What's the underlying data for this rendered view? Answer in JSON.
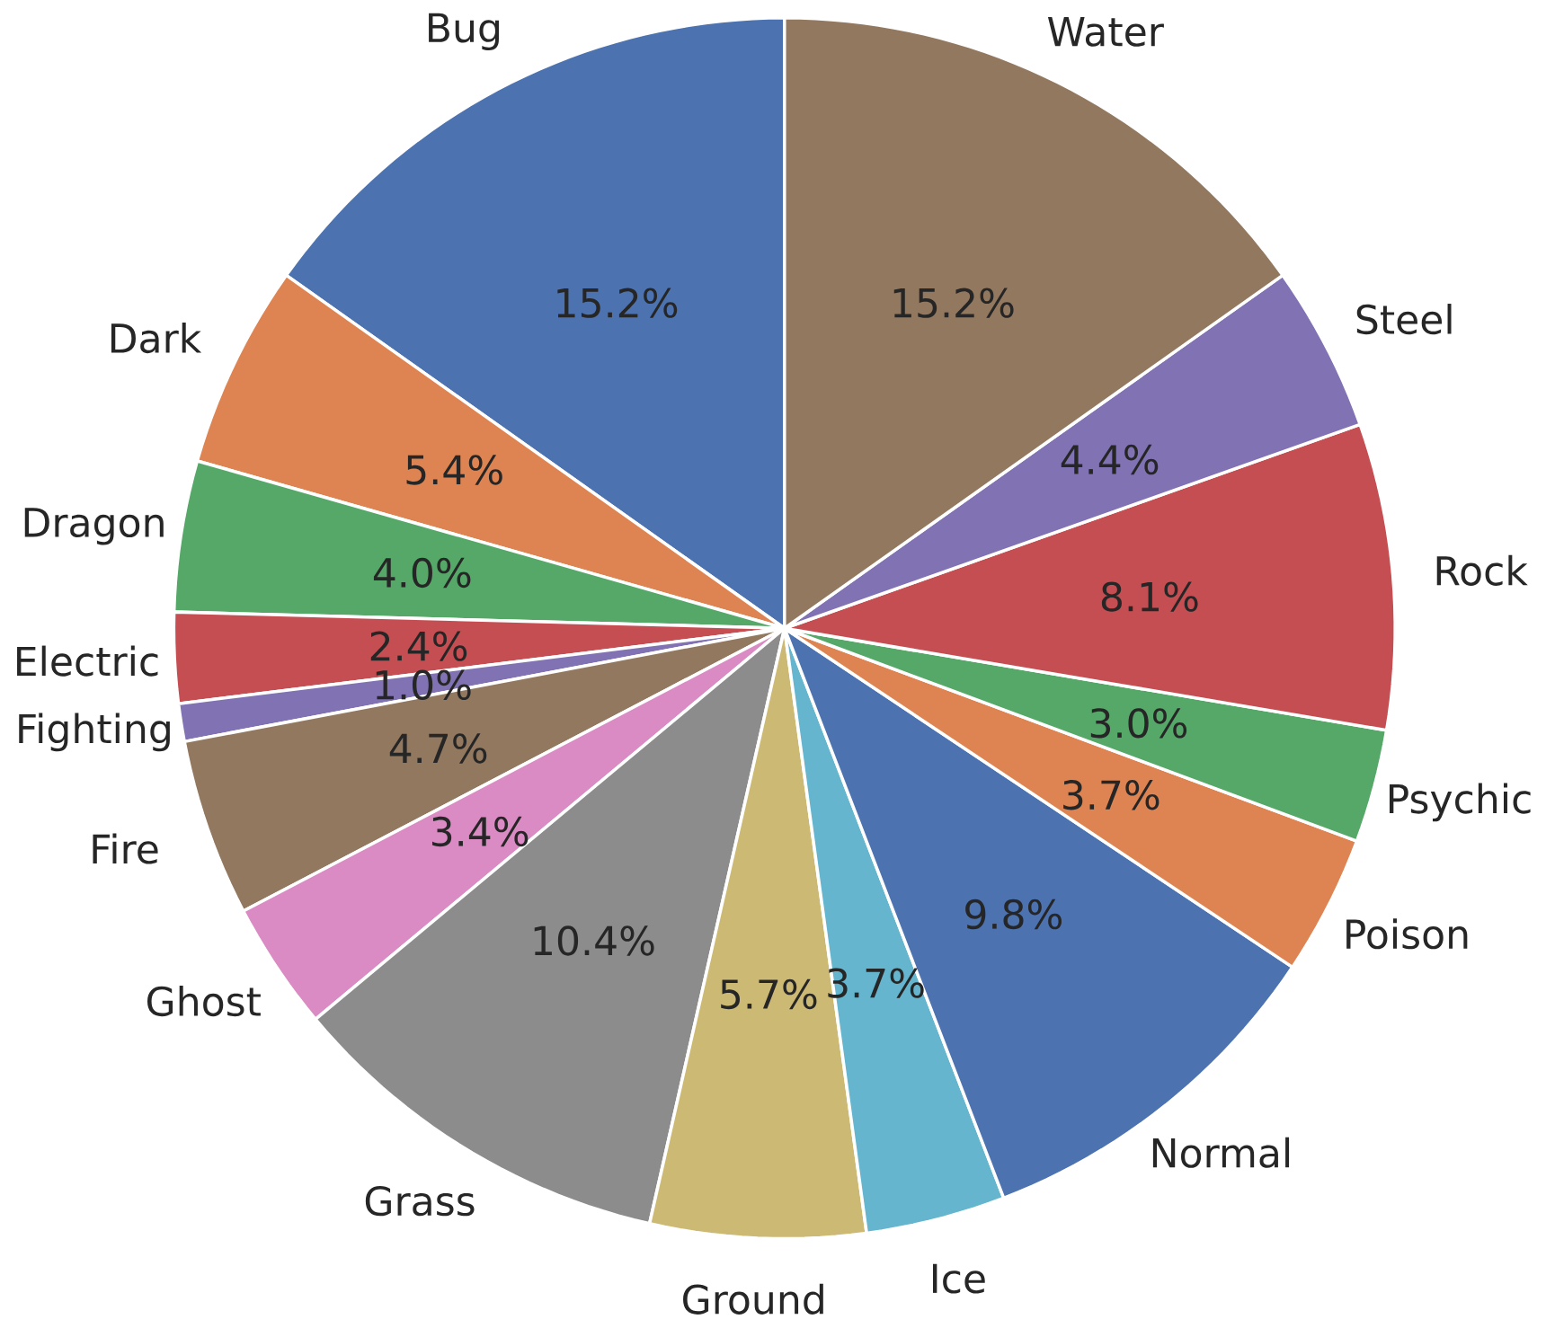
{
  "chart_data": {
    "type": "pie",
    "categories": [
      "Bug",
      "Dark",
      "Dragon",
      "Electric",
      "Fighting",
      "Fire",
      "Ghost",
      "Grass",
      "Ground",
      "Ice",
      "Normal",
      "Poison",
      "Psychic",
      "Rock",
      "Steel",
      "Water"
    ],
    "values": [
      15.2,
      5.4,
      4.0,
      2.4,
      1.0,
      4.7,
      3.4,
      10.4,
      5.7,
      3.7,
      9.8,
      3.7,
      3.0,
      8.1,
      4.4,
      15.2
    ],
    "colors": [
      "#4c72b0",
      "#dd8452",
      "#55a868",
      "#c44e52",
      "#8172b3",
      "#937860",
      "#da8bc3",
      "#8c8c8c",
      "#ccb974",
      "#64b5cd",
      "#4c72b0",
      "#dd8452",
      "#55a868",
      "#c44e52",
      "#8172b3",
      "#937860"
    ],
    "value_labels": [
      "15.2%",
      "5.4%",
      "4.0%",
      "2.4%",
      "1.0%",
      "4.7%",
      "3.4%",
      "10.4%",
      "5.7%",
      "3.7%",
      "9.8%",
      "3.7%",
      "3.0%",
      "8.1%",
      "4.4%",
      "15.2%"
    ]
  }
}
